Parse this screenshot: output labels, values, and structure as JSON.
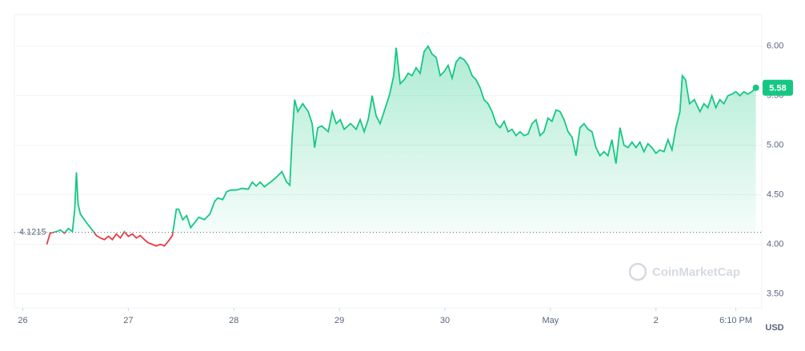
{
  "chart_data": {
    "type": "line",
    "x": [
      26.227,
      26.258,
      26.318,
      26.356,
      26.394,
      26.432,
      26.47,
      26.492,
      26.508,
      26.523,
      26.545,
      26.583,
      26.621,
      26.659,
      26.697,
      26.735,
      26.773,
      26.811,
      26.848,
      26.886,
      26.924,
      26.962,
      27.0,
      27.038,
      27.076,
      27.114,
      27.152,
      27.189,
      27.227,
      27.265,
      27.303,
      27.341,
      27.379,
      27.417,
      27.455,
      27.477,
      27.515,
      27.553,
      27.591,
      27.621,
      27.667,
      27.72,
      27.773,
      27.818,
      27.848,
      27.894,
      27.932,
      27.97,
      28.023,
      28.076,
      28.136,
      28.174,
      28.212,
      28.25,
      28.288,
      28.348,
      28.402,
      28.455,
      28.5,
      28.53,
      28.553,
      28.576,
      28.606,
      28.652,
      28.705,
      28.742,
      28.765,
      28.795,
      28.833,
      28.894,
      28.932,
      28.97,
      29.008,
      29.045,
      29.106,
      29.159,
      29.197,
      29.235,
      29.273,
      29.311,
      29.348,
      29.386,
      29.424,
      29.477,
      29.515,
      29.538,
      29.576,
      29.614,
      29.652,
      29.689,
      29.727,
      29.765,
      29.803,
      29.841,
      29.879,
      29.917,
      29.955,
      29.992,
      30.03,
      30.068,
      30.106,
      30.144,
      30.182,
      30.22,
      30.258,
      30.295,
      30.333,
      30.371,
      30.409,
      30.447,
      30.485,
      30.523,
      30.561,
      30.598,
      30.636,
      30.674,
      30.712,
      30.75,
      30.788,
      30.826,
      30.864,
      30.902,
      30.939,
      30.977,
      31.015,
      31.053,
      31.091,
      31.129,
      31.167,
      31.205,
      31.242,
      31.28,
      31.318,
      31.356,
      31.394,
      31.432,
      31.47,
      31.508,
      31.545,
      31.583,
      31.621,
      31.659,
      31.697,
      31.735,
      31.773,
      31.811,
      31.848,
      31.886,
      31.924,
      31.962,
      32.0,
      32.038,
      32.076,
      32.114,
      32.152,
      32.189,
      32.227,
      32.25,
      32.28,
      32.318,
      32.364,
      32.417,
      32.455,
      32.492,
      32.53,
      32.568,
      32.606,
      32.644,
      32.682,
      32.72,
      32.758,
      32.795,
      32.833,
      32.871,
      32.909,
      32.947
    ],
    "values": [
      4.0,
      4.113,
      4.129,
      4.145,
      4.113,
      4.161,
      4.129,
      4.355,
      4.726,
      4.411,
      4.306,
      4.25,
      4.194,
      4.145,
      4.089,
      4.065,
      4.048,
      4.081,
      4.048,
      4.105,
      4.065,
      4.129,
      4.081,
      4.105,
      4.065,
      4.089,
      4.048,
      4.016,
      4.0,
      3.984,
      4.0,
      3.984,
      4.032,
      4.089,
      4.355,
      4.355,
      4.25,
      4.29,
      4.169,
      4.21,
      4.274,
      4.25,
      4.306,
      4.435,
      4.468,
      4.452,
      4.532,
      4.548,
      4.548,
      4.565,
      4.556,
      4.629,
      4.589,
      4.629,
      4.581,
      4.629,
      4.677,
      4.734,
      4.629,
      4.597,
      5.097,
      5.46,
      5.339,
      5.419,
      5.339,
      5.218,
      4.976,
      5.177,
      5.194,
      5.137,
      5.339,
      5.218,
      5.258,
      5.161,
      5.218,
      5.161,
      5.258,
      5.137,
      5.258,
      5.5,
      5.298,
      5.218,
      5.339,
      5.516,
      5.702,
      5.984,
      5.621,
      5.661,
      5.726,
      5.702,
      5.782,
      5.726,
      5.944,
      6.0,
      5.919,
      5.887,
      5.702,
      5.742,
      5.806,
      5.677,
      5.839,
      5.887,
      5.863,
      5.806,
      5.702,
      5.661,
      5.581,
      5.46,
      5.419,
      5.339,
      5.218,
      5.177,
      5.242,
      5.137,
      5.161,
      5.097,
      5.137,
      5.097,
      5.113,
      5.218,
      5.258,
      5.097,
      5.137,
      5.274,
      5.242,
      5.355,
      5.339,
      5.258,
      5.137,
      5.081,
      4.895,
      5.177,
      5.218,
      5.161,
      5.137,
      4.976,
      4.895,
      4.935,
      4.895,
      5.056,
      4.815,
      5.177,
      5.0,
      4.976,
      5.032,
      4.976,
      5.032,
      4.935,
      5.016,
      4.976,
      4.919,
      4.952,
      4.935,
      5.056,
      4.952,
      5.177,
      5.339,
      5.702,
      5.661,
      5.419,
      5.46,
      5.339,
      5.419,
      5.379,
      5.5,
      5.379,
      5.46,
      5.419,
      5.5,
      5.516,
      5.54,
      5.5,
      5.54,
      5.516,
      5.54,
      5.58
    ],
    "reference_line": 4.1215,
    "up_color": "#16c784",
    "down_color": "#ea3943",
    "xlim": [
      25.92,
      32.95
    ],
    "xticks": [
      26,
      27,
      28,
      29,
      30,
      {
        "value": 31,
        "label": "May"
      },
      {
        "value": 32,
        "label": "2"
      },
      {
        "value": 32.757,
        "label": "6:10 PM"
      }
    ],
    "ylim": [
      3.36,
      6.32
    ],
    "yticks": [
      {
        "value": 3.5,
        "label": "3.50"
      },
      {
        "value": 4,
        "label": "4.00"
      },
      {
        "value": 4.5,
        "label": "4.50"
      },
      {
        "value": 5,
        "label": "5.00"
      },
      {
        "value": 5.5,
        "label": "5.50"
      },
      {
        "value": 6,
        "label": "6.00"
      }
    ],
    "grid": true,
    "unit": "USD",
    "watermark": "CoinMarketCap"
  }
}
